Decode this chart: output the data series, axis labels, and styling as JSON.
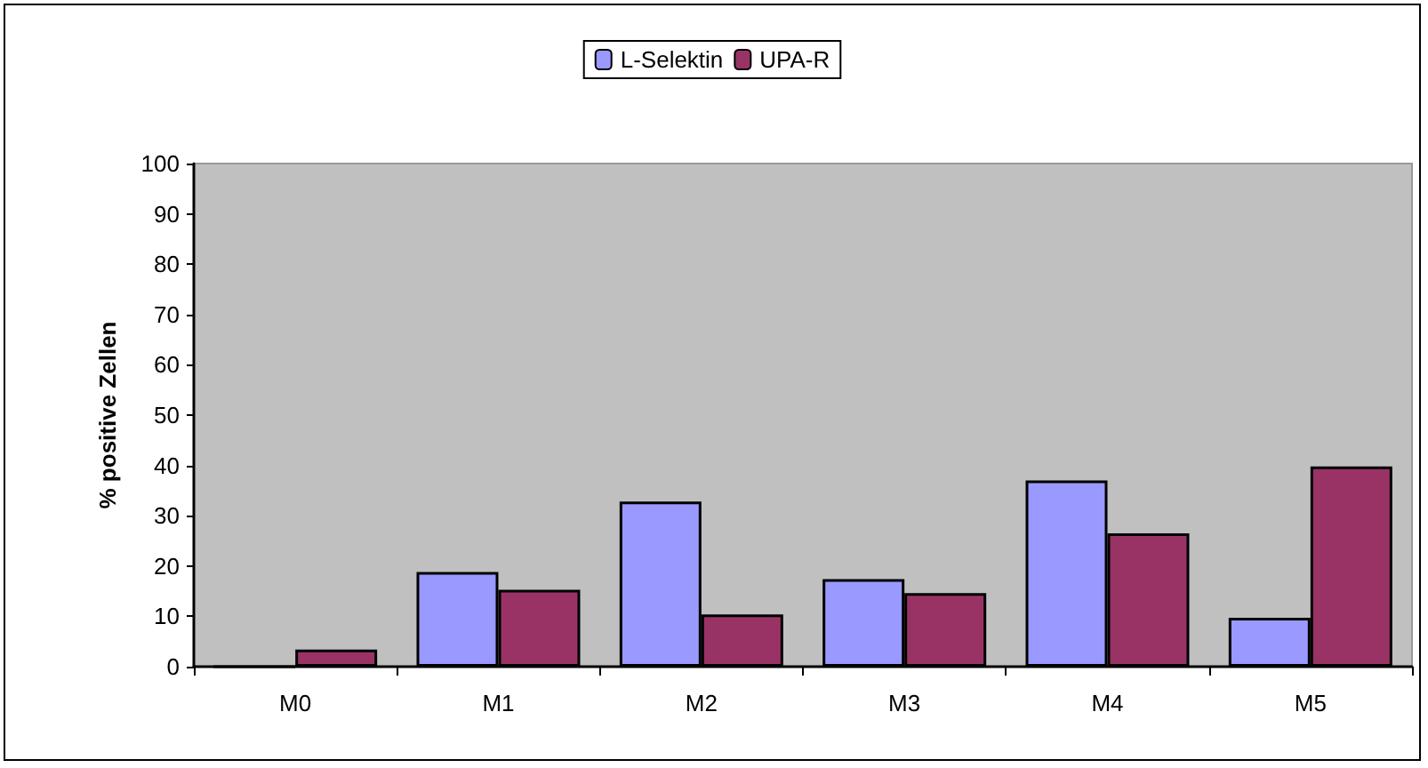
{
  "chart_data": {
    "type": "bar",
    "ylabel": "% positive Zellen",
    "categories": [
      "M0",
      "M1",
      "M2",
      "M3",
      "M4",
      "M5"
    ],
    "series": [
      {
        "name": "L-Selektin",
        "color": "#9999ff",
        "values": [
          0,
          18.8,
          32.8,
          17.4,
          37,
          9.7
        ]
      },
      {
        "name": "UPA-R",
        "color": "#993366",
        "values": [
          3.4,
          15.3,
          10.4,
          14.6,
          26.5,
          39.8
        ]
      }
    ],
    "ylim": [
      0,
      100
    ],
    "yticks": [
      0,
      10,
      20,
      30,
      40,
      50,
      60,
      70,
      80,
      90,
      100
    ],
    "grid": false,
    "legend": "top"
  }
}
